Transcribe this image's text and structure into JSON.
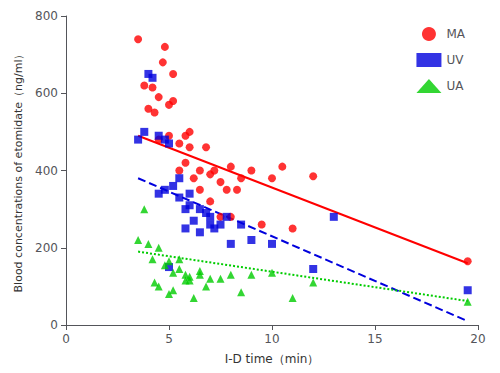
{
  "chart_data": {
    "type": "scatter",
    "xlabel": "I-D time（min）",
    "ylabel": "Blood concentrations of etomidate（ng/ml）",
    "xlim": [
      0,
      20
    ],
    "ylim": [
      0,
      800
    ],
    "xticks": [
      0,
      5,
      10,
      15,
      20
    ],
    "yticks": [
      0,
      200,
      400,
      600,
      800
    ],
    "grid": false,
    "legend": "upper right",
    "series": [
      {
        "name": "MA",
        "color": "#ff0000",
        "marker": "circle",
        "line_style": "solid",
        "x": [
          3.5,
          3.8,
          4.0,
          4.2,
          4.3,
          4.5,
          4.5,
          4.7,
          4.8,
          5.0,
          5.0,
          5.2,
          5.2,
          5.5,
          5.5,
          5.8,
          5.8,
          6.0,
          6.0,
          6.2,
          6.5,
          6.5,
          6.8,
          7.0,
          7.0,
          7.2,
          7.5,
          7.5,
          7.8,
          8.0,
          8.0,
          8.3,
          8.5,
          9.0,
          9.5,
          10.0,
          10.5,
          11.0,
          12.0,
          19.5
        ],
        "values": [
          740,
          620,
          560,
          615,
          550,
          480,
          590,
          680,
          720,
          570,
          490,
          650,
          580,
          470,
          400,
          490,
          420,
          500,
          460,
          380,
          400,
          350,
          460,
          390,
          320,
          400,
          370,
          280,
          350,
          410,
          280,
          350,
          380,
          400,
          260,
          380,
          410,
          250,
          385,
          165
        ],
        "fit_x": [
          3.5,
          19.5
        ],
        "fit_values": [
          490,
          160
        ]
      },
      {
        "name": "UV",
        "color": "#0000dd",
        "marker": "square",
        "line_style": "dashed",
        "x": [
          3.5,
          3.8,
          4.0,
          4.2,
          4.5,
          4.5,
          4.8,
          4.8,
          5.0,
          5.0,
          5.2,
          5.5,
          5.5,
          5.8,
          5.8,
          6.0,
          6.0,
          6.2,
          6.5,
          6.5,
          6.8,
          7.0,
          7.0,
          7.2,
          7.5,
          7.8,
          8.0,
          8.5,
          9.0,
          10.0,
          12.0,
          13.0,
          19.5
        ],
        "values": [
          480,
          500,
          650,
          640,
          340,
          490,
          350,
          480,
          470,
          150,
          360,
          380,
          330,
          300,
          250,
          340,
          310,
          270,
          300,
          240,
          290,
          260,
          280,
          250,
          260,
          280,
          210,
          260,
          220,
          210,
          145,
          280,
          90
        ],
        "fit_x": [
          3.5,
          19.5
        ],
        "fit_values": [
          380,
          10
        ]
      },
      {
        "name": "UA",
        "color": "#00cc00",
        "marker": "triangle",
        "line_style": "dotted",
        "x": [
          3.5,
          3.8,
          4.0,
          4.2,
          4.3,
          4.5,
          4.5,
          4.8,
          5.0,
          5.0,
          5.2,
          5.2,
          5.5,
          5.5,
          5.8,
          5.8,
          6.0,
          6.0,
          6.2,
          6.5,
          6.5,
          6.8,
          7.0,
          7.5,
          8.0,
          8.5,
          9.0,
          10.0,
          11.0,
          12.0,
          19.5
        ],
        "values": [
          220,
          300,
          210,
          170,
          110,
          200,
          100,
          155,
          165,
          80,
          135,
          90,
          145,
          170,
          115,
          130,
          115,
          125,
          70,
          140,
          130,
          100,
          120,
          120,
          130,
          85,
          130,
          135,
          70,
          110,
          60
        ],
        "fit_x": [
          3.5,
          19.5
        ],
        "fit_values": [
          190,
          62
        ]
      }
    ]
  }
}
